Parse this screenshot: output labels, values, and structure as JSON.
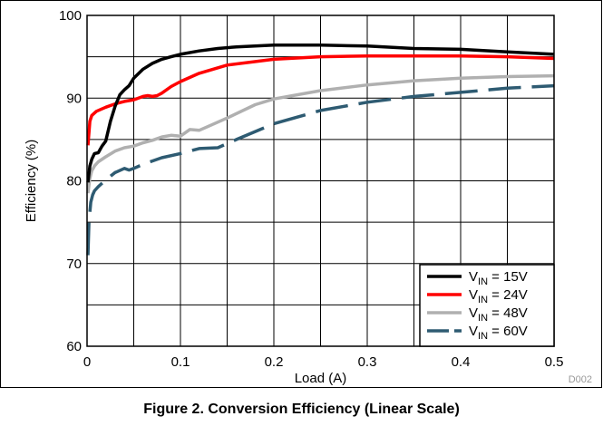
{
  "chart_data": {
    "type": "line",
    "title": "",
    "xlabel": "Load (A)",
    "ylabel": "Efficiency (%)",
    "xlim": [
      0,
      0.5
    ],
    "ylim": [
      60,
      100
    ],
    "xticks": [
      "0",
      "0.1",
      "0.2",
      "0.3",
      "0.4",
      "0.5"
    ],
    "yticks": [
      "60",
      "70",
      "80",
      "90",
      "100"
    ],
    "grid": true,
    "legend_position": "bottom-right",
    "series": [
      {
        "name": "VIN = 15V",
        "legend_main": "V",
        "legend_sub": "IN",
        "legend_rest": " = 15V",
        "color": "#000000",
        "dash": "solid",
        "x": [
          0.001,
          0.003,
          0.005,
          0.008,
          0.012,
          0.016,
          0.02,
          0.025,
          0.03,
          0.035,
          0.04,
          0.045,
          0.05,
          0.06,
          0.07,
          0.08,
          0.09,
          0.1,
          0.12,
          0.14,
          0.16,
          0.18,
          0.2,
          0.22,
          0.25,
          0.3,
          0.35,
          0.4,
          0.45,
          0.5
        ],
        "y": [
          79.8,
          81.8,
          82.6,
          83.3,
          83.4,
          84.2,
          84.8,
          87.2,
          89.0,
          90.4,
          91.0,
          91.5,
          92.4,
          93.5,
          94.2,
          94.7,
          95.0,
          95.3,
          95.7,
          96.0,
          96.2,
          96.3,
          96.4,
          96.4,
          96.4,
          96.3,
          96.0,
          95.9,
          95.6,
          95.3
        ]
      },
      {
        "name": "VIN = 24V",
        "legend_main": "V",
        "legend_sub": "IN",
        "legend_rest": " = 24V",
        "color": "#ff0000",
        "dash": "solid",
        "x": [
          0.001,
          0.003,
          0.005,
          0.01,
          0.02,
          0.03,
          0.04,
          0.05,
          0.06,
          0.065,
          0.07,
          0.075,
          0.08,
          0.09,
          0.1,
          0.12,
          0.15,
          0.2,
          0.25,
          0.3,
          0.35,
          0.4,
          0.45,
          0.5
        ],
        "y": [
          84.3,
          87.2,
          87.9,
          88.4,
          88.9,
          89.3,
          89.6,
          89.8,
          90.2,
          90.3,
          90.2,
          90.3,
          90.6,
          91.4,
          92.0,
          93.0,
          94.0,
          94.7,
          95.0,
          95.1,
          95.1,
          95.1,
          95.0,
          94.8
        ]
      },
      {
        "name": "VIN = 48V",
        "legend_main": "V",
        "legend_sub": "IN",
        "legend_rest": " = 48V",
        "color": "#b0b0b0",
        "dash": "solid",
        "x": [
          0.001,
          0.003,
          0.005,
          0.008,
          0.012,
          0.02,
          0.03,
          0.04,
          0.05,
          0.06,
          0.07,
          0.08,
          0.09,
          0.1,
          0.11,
          0.12,
          0.13,
          0.15,
          0.18,
          0.2,
          0.25,
          0.3,
          0.35,
          0.4,
          0.45,
          0.5
        ],
        "y": [
          78.5,
          80.3,
          81.2,
          81.8,
          82.3,
          82.9,
          83.6,
          84.0,
          84.2,
          84.6,
          84.9,
          85.3,
          85.5,
          85.4,
          86.2,
          86.1,
          86.6,
          87.6,
          89.2,
          89.9,
          90.9,
          91.6,
          92.1,
          92.4,
          92.6,
          92.7
        ]
      },
      {
        "name": "VIN = 60V",
        "legend_main": "V",
        "legend_sub": "IN",
        "legend_rest": " = 60V",
        "color": "#2e5b72",
        "dash": "long-dash",
        "x": [
          0.001,
          0.002,
          0.004,
          0.006,
          0.008,
          0.012,
          0.02,
          0.03,
          0.04,
          0.045,
          0.05,
          0.06,
          0.07,
          0.08,
          0.1,
          0.12,
          0.14,
          0.16,
          0.2,
          0.25,
          0.3,
          0.35,
          0.4,
          0.45,
          0.5
        ],
        "y": [
          71.0,
          75.0,
          77.4,
          78.3,
          78.8,
          79.3,
          80.1,
          81.0,
          81.5,
          81.3,
          81.5,
          82.0,
          82.4,
          82.8,
          83.3,
          83.9,
          84.0,
          85.0,
          86.9,
          88.5,
          89.5,
          90.2,
          90.7,
          91.2,
          91.5
        ]
      }
    ]
  },
  "figure_id": "D002",
  "caption": "Figure 2. Conversion Efficiency (Linear Scale)"
}
